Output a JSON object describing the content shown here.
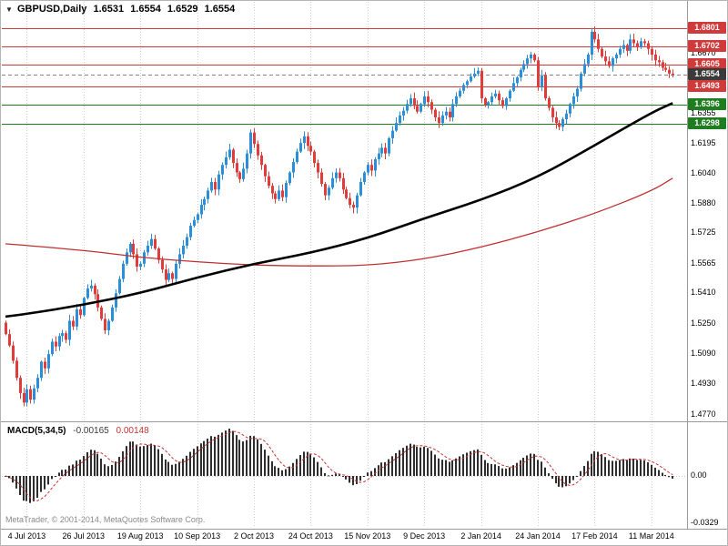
{
  "header": {
    "marker": "▼",
    "symbol": "GBPUSD,Daily",
    "open": "1.6531",
    "high": "1.6554",
    "low": "1.6529",
    "close": "1.6554"
  },
  "price_scale": {
    "ticks": [
      "1.6670",
      "1.6515",
      "1.6355",
      "1.6195",
      "1.6040",
      "1.5880",
      "1.5725",
      "1.5565",
      "1.5410",
      "1.5250",
      "1.5090",
      "1.4930",
      "1.4770"
    ]
  },
  "levels": [
    {
      "label": "1.6801",
      "price": 1.6801,
      "type": "resistance",
      "color": "#d03a3a"
    },
    {
      "label": "1.6702",
      "price": 1.6702,
      "type": "resistance",
      "color": "#d03a3a"
    },
    {
      "label": "1.6605",
      "price": 1.6605,
      "type": "resistance",
      "color": "#d03a3a"
    },
    {
      "label": "1.6493",
      "price": 1.6493,
      "type": "resistance",
      "color": "#d03a3a"
    },
    {
      "label": "1.6396",
      "price": 1.6396,
      "type": "support",
      "color": "#1e7d1e"
    },
    {
      "label": "1.6298",
      "price": 1.6298,
      "type": "support",
      "color": "#1e7d1e"
    }
  ],
  "current_price": {
    "label": "1.6554",
    "price": 1.6554,
    "color": "#3a3a3a"
  },
  "macd": {
    "name": "MACD(5,34,5)",
    "value": "-0.00165",
    "signal_value": "0.00148",
    "scale_labels": [
      "0.00",
      "-0.0329"
    ]
  },
  "footer": {
    "copyright": "MetaTrader, © 2001-2014, MetaQuotes Software Corp."
  },
  "chart_data": {
    "type": "candlestick",
    "symbol": "GBPUSD",
    "timeframe": "Daily",
    "last_ohlc": {
      "open": 1.6531,
      "high": 1.6554,
      "low": 1.6529,
      "close": 1.6554
    },
    "price_axis": {
      "min": 1.4736,
      "max": 1.6861
    },
    "x_gridlines": [
      {
        "bar": 6,
        "label": "4 Jul 2013"
      },
      {
        "bar": 22,
        "label": "26 Jul 2013"
      },
      {
        "bar": 38,
        "label": "19 Aug 2013"
      },
      {
        "bar": 54,
        "label": "10 Sep 2013"
      },
      {
        "bar": 70,
        "label": "2 Oct 2013"
      },
      {
        "bar": 86,
        "label": "24 Oct 2013"
      },
      {
        "bar": 102,
        "label": "15 Nov 2013"
      },
      {
        "bar": 118,
        "label": "9 Dec 2013"
      },
      {
        "bar": 134,
        "label": "2 Jan 2014"
      },
      {
        "bar": 150,
        "label": "24 Jan 2014"
      },
      {
        "bar": 166,
        "label": "17 Feb 2014"
      },
      {
        "bar": 182,
        "label": "11 Mar 2014"
      }
    ],
    "closes": [
      1.519,
      1.513,
      1.505,
      1.496,
      1.488,
      1.483,
      1.49,
      1.4845,
      1.4905,
      1.496,
      1.5045,
      1.501,
      1.5085,
      1.515,
      1.5125,
      1.518,
      1.5195,
      1.516,
      1.526,
      1.523,
      1.532,
      1.529,
      1.538,
      1.543,
      1.5445,
      1.54,
      1.533,
      1.527,
      1.521,
      1.526,
      1.533,
      1.5405,
      1.548,
      1.556,
      1.562,
      1.5665,
      1.561,
      1.5545,
      1.556,
      1.562,
      1.5655,
      1.569,
      1.564,
      1.558,
      1.553,
      1.5475,
      1.551,
      1.548,
      1.556,
      1.561,
      1.5655,
      1.57,
      1.576,
      1.579,
      1.582,
      1.587,
      1.59,
      1.5945,
      1.599,
      1.595,
      1.603,
      1.608,
      1.612,
      1.616,
      1.609,
      1.604,
      1.6005,
      1.606,
      1.614,
      1.625,
      1.619,
      1.613,
      1.608,
      1.602,
      1.597,
      1.593,
      1.59,
      1.5945,
      1.591,
      1.5985,
      1.604,
      1.6095,
      1.615,
      1.6195,
      1.623,
      1.618,
      1.615,
      1.609,
      1.604,
      1.598,
      1.592,
      1.596,
      1.601,
      1.604,
      1.601,
      1.595,
      1.5905,
      1.587,
      1.5855,
      1.592,
      1.599,
      1.604,
      1.608,
      1.605,
      1.611,
      1.614,
      1.617,
      1.614,
      1.622,
      1.626,
      1.63,
      1.634,
      1.6365,
      1.64,
      1.643,
      1.639,
      1.636,
      1.64,
      1.644,
      1.641,
      1.637,
      1.633,
      1.63,
      1.634,
      1.636,
      1.633,
      1.64,
      1.644,
      1.647,
      1.65,
      1.652,
      1.6545,
      1.656,
      1.6575,
      1.643,
      1.6395,
      1.641,
      1.644,
      1.6455,
      1.642,
      1.639,
      1.643,
      1.647,
      1.651,
      1.654,
      1.658,
      1.661,
      1.664,
      1.666,
      1.663,
      1.649,
      1.655,
      1.643,
      1.638,
      1.633,
      1.63,
      1.628,
      1.632,
      1.635,
      1.64,
      1.644,
      1.648,
      1.656,
      1.661,
      1.666,
      1.678,
      1.674,
      1.669,
      1.665,
      1.6625,
      1.66,
      1.664,
      1.666,
      1.669,
      1.671,
      1.668,
      1.674,
      1.672,
      1.67,
      1.673,
      1.672,
      1.669,
      1.666,
      1.663,
      1.662,
      1.659,
      1.658,
      1.656,
      1.6554
    ],
    "moving_averages": [
      {
        "name": "slow-ma-black",
        "color": "#000000",
        "width": 2.6,
        "points": [
          [
            0,
            1.5282
          ],
          [
            6,
            1.5296
          ],
          [
            22,
            1.5344
          ],
          [
            38,
            1.5406
          ],
          [
            54,
            1.5488
          ],
          [
            70,
            1.556
          ],
          [
            86,
            1.5617
          ],
          [
            102,
            1.5694
          ],
          [
            118,
            1.5799
          ],
          [
            134,
            1.5895
          ],
          [
            150,
            1.6014
          ],
          [
            166,
            1.6182
          ],
          [
            182,
            1.6355
          ],
          [
            188,
            1.6405
          ]
        ]
      },
      {
        "name": "long-ma-red",
        "color": "#c03030",
        "width": 1.3,
        "points": [
          [
            0,
            1.5665
          ],
          [
            22,
            1.5632
          ],
          [
            38,
            1.5593
          ],
          [
            54,
            1.557
          ],
          [
            70,
            1.5552
          ],
          [
            86,
            1.5548
          ],
          [
            102,
            1.555
          ],
          [
            118,
            1.5584
          ],
          [
            134,
            1.5646
          ],
          [
            150,
            1.5727
          ],
          [
            166,
            1.5823
          ],
          [
            182,
            1.5942
          ],
          [
            188,
            1.601
          ]
        ]
      }
    ],
    "macd": {
      "params": [
        5,
        34,
        5
      ],
      "bar_color": "#2e2e2e",
      "signal_color": "#cc3333",
      "current_value": -0.00165,
      "current_signal": 0.00148
    },
    "colors": {
      "bull": "#2a8fd8",
      "bear": "#e03c3c",
      "grid": "#cfcfcf",
      "background": "#ffffff",
      "resistance": "#d03a3a",
      "support": "#1e7d1e"
    }
  }
}
